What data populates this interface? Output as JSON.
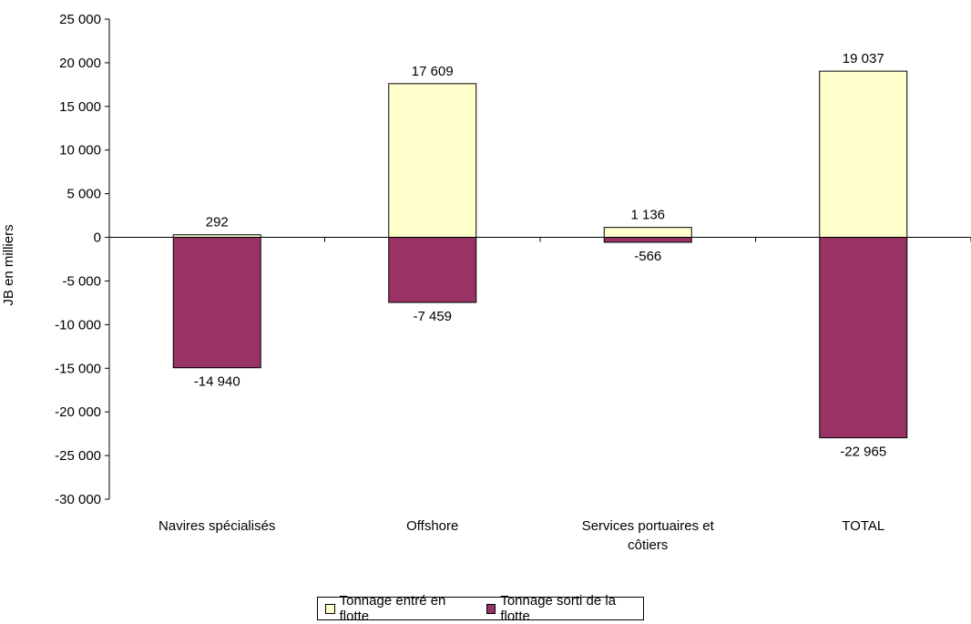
{
  "chart_data": {
    "type": "bar",
    "title": "",
    "ylabel": "JB en milliers",
    "xlabel": "",
    "categories": [
      "Navires spécialisés",
      "Offshore",
      "Services portuaires et côtiers",
      "TOTAL"
    ],
    "category_lines": [
      [
        "Navires spécialisés"
      ],
      [
        "Offshore"
      ],
      [
        "Services portuaires et",
        "côtiers"
      ],
      [
        "TOTAL"
      ]
    ],
    "series": [
      {
        "name": "Tonnage entré en flotte",
        "values": [
          292,
          17609,
          1136,
          19037
        ],
        "labels": [
          "292",
          "17 609",
          "1 136",
          "19 037"
        ],
        "color": "#FFFFCC"
      },
      {
        "name": "Tonnage sorti de la flotte",
        "values": [
          -14940,
          -7459,
          -566,
          -22965
        ],
        "labels": [
          "-14 940",
          "-7 459",
          "-566",
          "-22 965"
        ],
        "color": "#993366"
      }
    ],
    "ylim": [
      -30000,
      25000
    ],
    "yticks": [
      25000,
      20000,
      15000,
      10000,
      5000,
      0,
      -5000,
      -10000,
      -15000,
      -20000,
      -25000,
      -30000
    ],
    "ytick_labels": [
      "25 000",
      "20 000",
      "15 000",
      "10 000",
      "5 000",
      "0",
      "-5 000",
      "-10 000",
      "-15 000",
      "-20 000",
      "-25 000",
      "-30 000"
    ],
    "stacked": true,
    "grid": false,
    "legend_position": "bottom"
  }
}
